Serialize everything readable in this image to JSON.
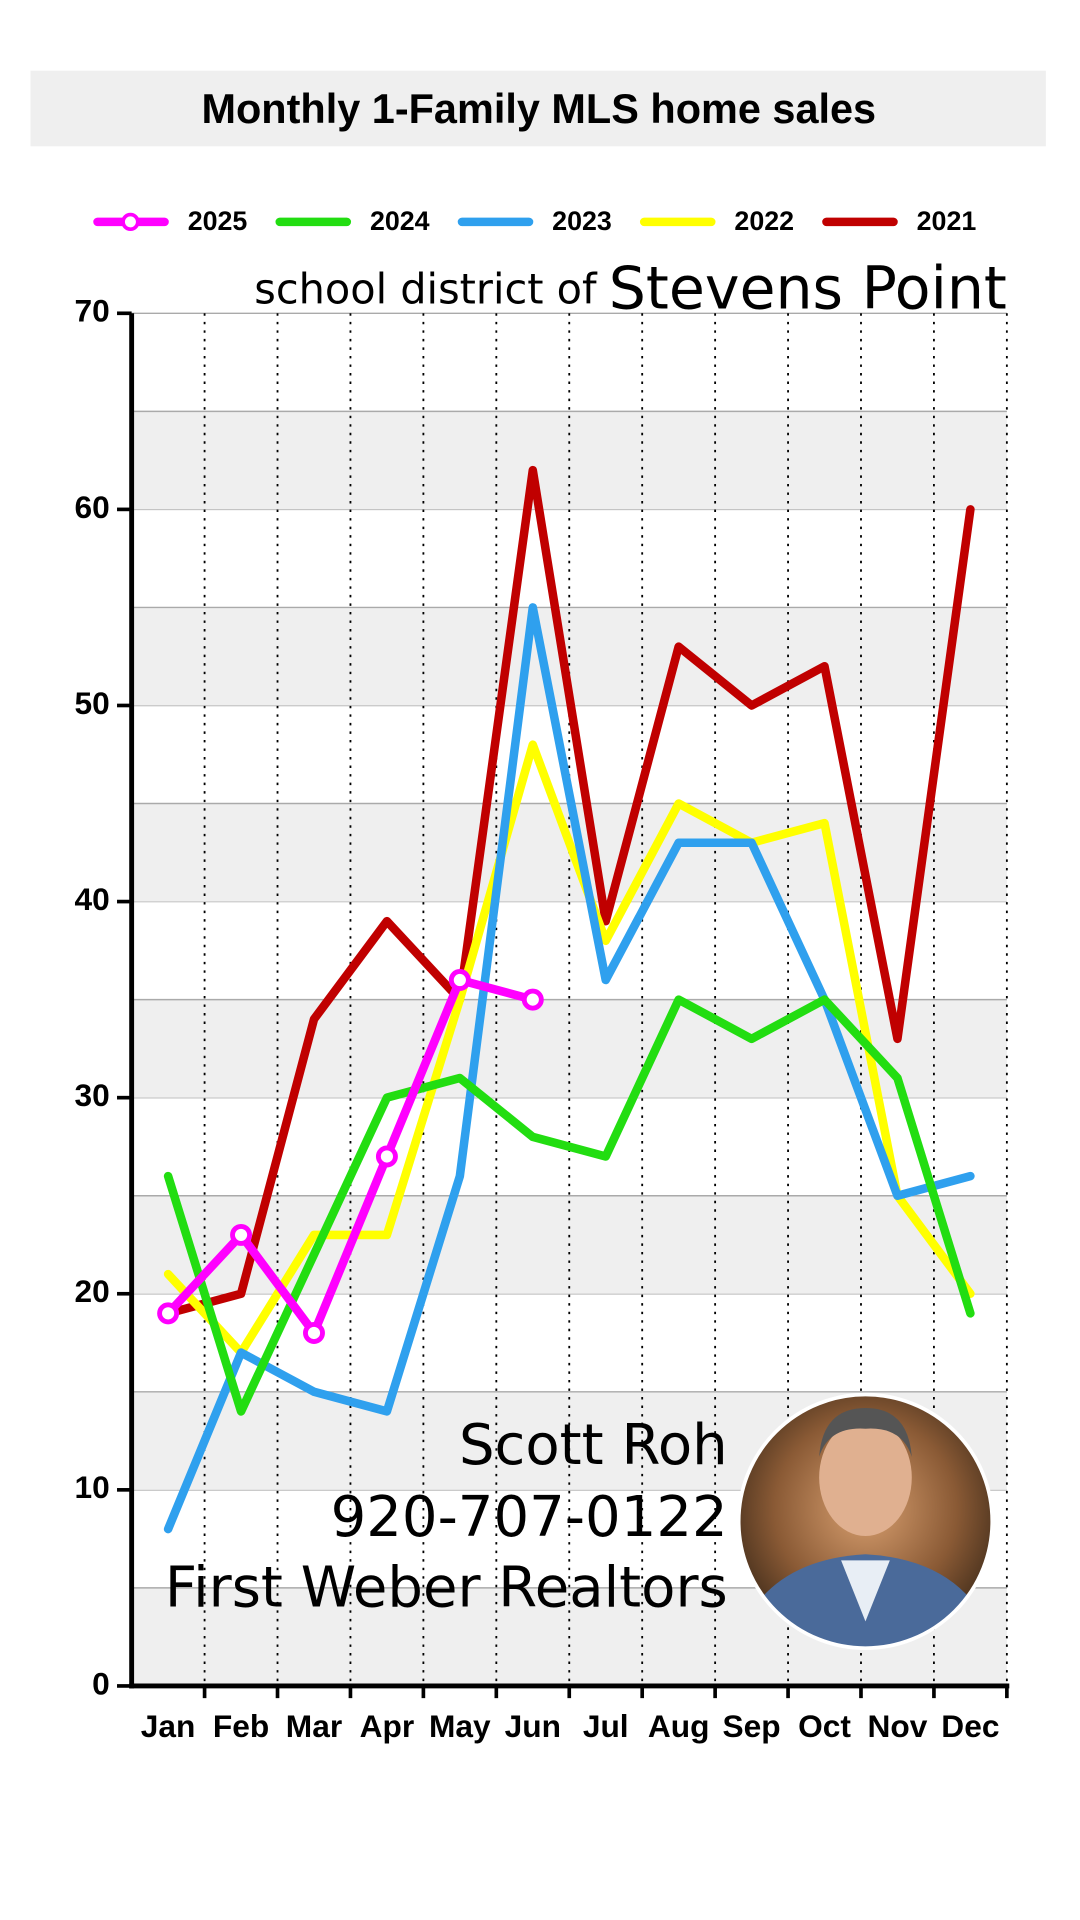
{
  "chart_data": {
    "type": "line",
    "title": "Monthly 1-Family MLS home sales",
    "subtitle_prefix": "school district of",
    "subtitle": "Stevens Point",
    "categories": [
      "Jan",
      "Feb",
      "Mar",
      "Apr",
      "May",
      "Jun",
      "Jul",
      "Aug",
      "Sep",
      "Oct",
      "Nov",
      "Dec"
    ],
    "series": [
      {
        "name": "2025",
        "color": "#ff00ff",
        "markers": true,
        "values": [
          19,
          23,
          18,
          27,
          36,
          35,
          null,
          null,
          null,
          null,
          null,
          null
        ]
      },
      {
        "name": "2024",
        "color": "#22dd11",
        "values": [
          26,
          14,
          22,
          30,
          31,
          28,
          27,
          35,
          33,
          35,
          31,
          19
        ]
      },
      {
        "name": "2023",
        "color": "#2fa0ee",
        "values": [
          8,
          17,
          15,
          14,
          26,
          55,
          36,
          43,
          43,
          35,
          25,
          26
        ]
      },
      {
        "name": "2022",
        "color": "#ffff00",
        "values": [
          21,
          17,
          23,
          23,
          35,
          48,
          38,
          45,
          43,
          44,
          25,
          20
        ]
      },
      {
        "name": "2021",
        "color": "#c00000",
        "values": [
          19,
          20,
          34,
          39,
          35,
          62,
          39,
          53,
          50,
          52,
          33,
          60
        ]
      }
    ],
    "ylim": [
      0,
      70
    ],
    "yticks": [
      0,
      10,
      20,
      30,
      40,
      50,
      60,
      70
    ],
    "grid_bands": 5,
    "annotations": [
      "Scott Roh",
      "920-707-0122",
      "First Weber Realtors"
    ]
  }
}
